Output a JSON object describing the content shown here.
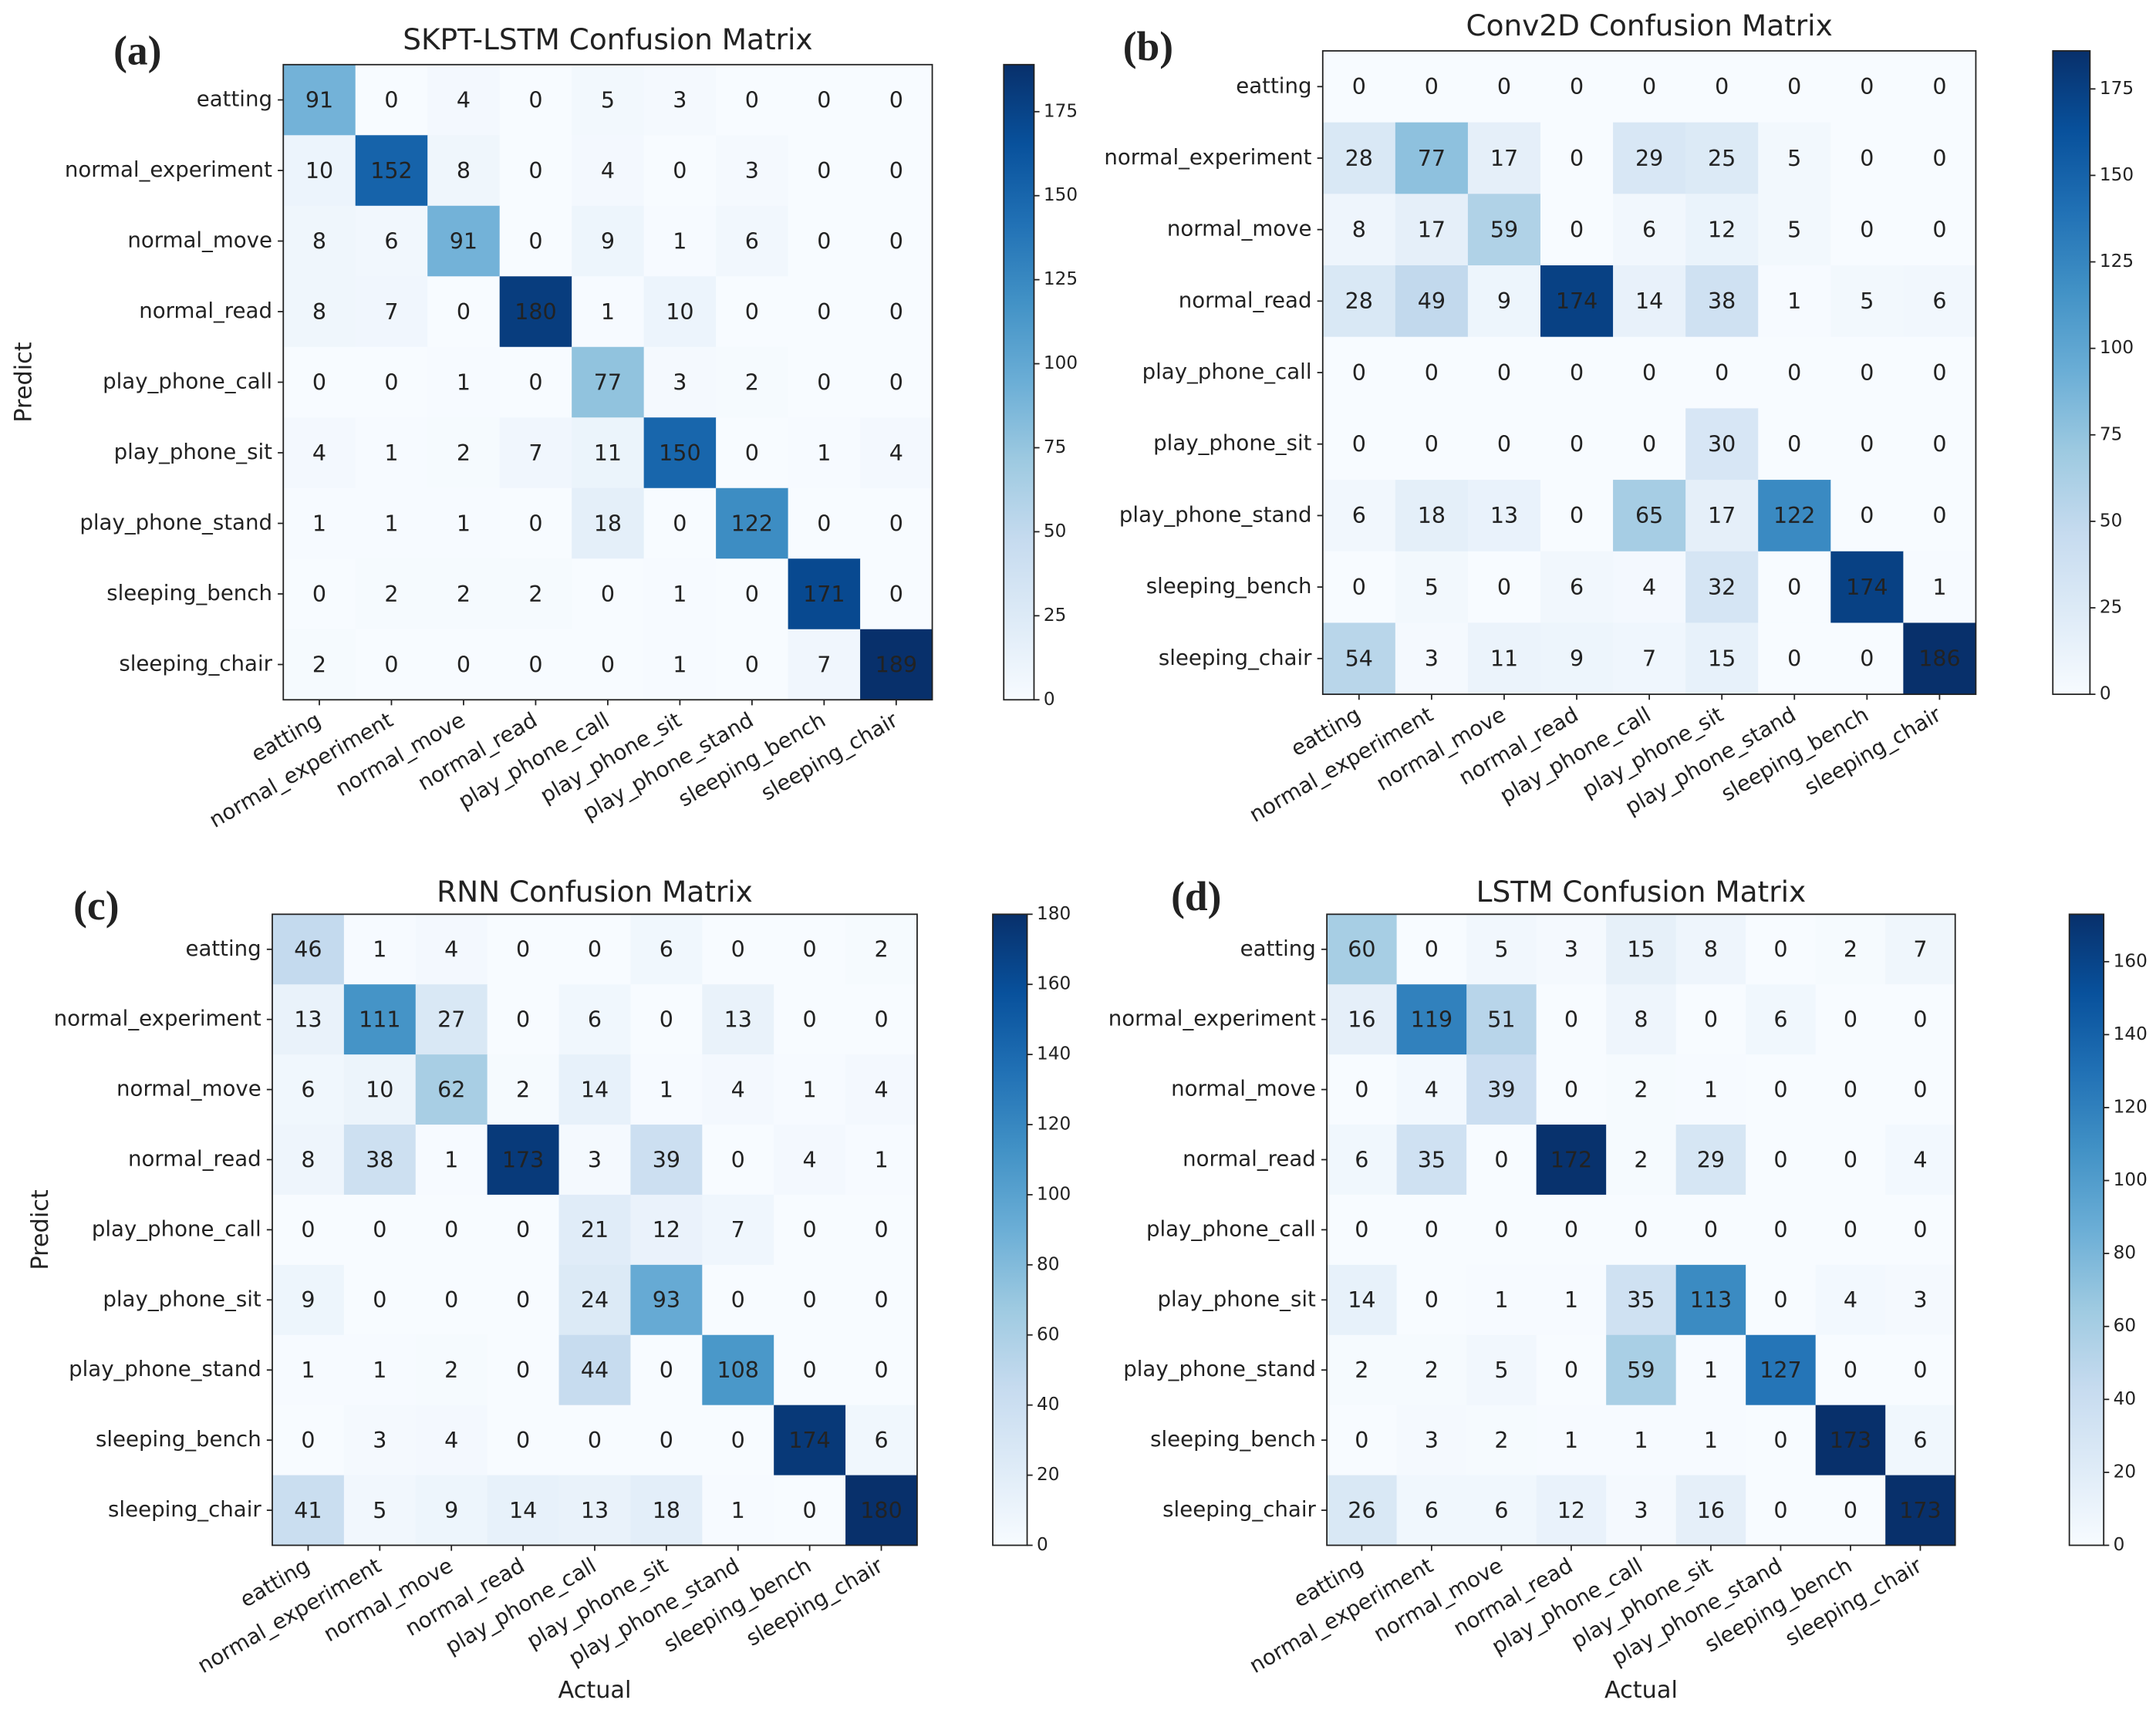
{
  "chart_data": [
    {
      "type": "heatmap",
      "panel_label": "(a)",
      "title": "SKPT-LSTM Confusion Matrix",
      "y_label": "Predict",
      "categories": [
        "eatting",
        "normal_experiment",
        "normal_move",
        "normal_read",
        "play_phone_call",
        "play_phone_sit",
        "play_phone_stand",
        "sleeping_bench",
        "sleeping_chair"
      ],
      "values": [
        [
          91,
          0,
          4,
          0,
          5,
          3,
          0,
          0,
          0
        ],
        [
          10,
          152,
          8,
          0,
          4,
          0,
          3,
          0,
          0
        ],
        [
          8,
          6,
          91,
          0,
          9,
          1,
          6,
          0,
          0
        ],
        [
          8,
          7,
          0,
          180,
          1,
          10,
          0,
          0,
          0
        ],
        [
          0,
          0,
          1,
          0,
          77,
          3,
          2,
          0,
          0
        ],
        [
          4,
          1,
          2,
          7,
          11,
          150,
          0,
          1,
          4
        ],
        [
          1,
          1,
          1,
          0,
          18,
          0,
          122,
          0,
          0
        ],
        [
          0,
          2,
          2,
          2,
          0,
          1,
          0,
          171,
          0
        ],
        [
          2,
          0,
          0,
          0,
          0,
          1,
          0,
          7,
          189
        ]
      ],
      "clim": [
        0,
        189
      ],
      "cticks": [
        0,
        25,
        50,
        75,
        100,
        125,
        150,
        175
      ],
      "colormap": "Blues"
    },
    {
      "type": "heatmap",
      "panel_label": "(b)",
      "title": "Conv2D Confusion Matrix",
      "categories": [
        "eatting",
        "normal_experiment",
        "normal_move",
        "normal_read",
        "play_phone_call",
        "play_phone_sit",
        "play_phone_stand",
        "sleeping_bench",
        "sleeping_chair"
      ],
      "values": [
        [
          0,
          0,
          0,
          0,
          0,
          0,
          0,
          0,
          0
        ],
        [
          28,
          77,
          17,
          0,
          29,
          25,
          5,
          0,
          0
        ],
        [
          8,
          17,
          59,
          0,
          6,
          12,
          5,
          0,
          0
        ],
        [
          28,
          49,
          9,
          174,
          14,
          38,
          1,
          5,
          6
        ],
        [
          0,
          0,
          0,
          0,
          0,
          0,
          0,
          0,
          0
        ],
        [
          0,
          0,
          0,
          0,
          0,
          30,
          0,
          0,
          0
        ],
        [
          6,
          18,
          13,
          0,
          65,
          17,
          122,
          0,
          0
        ],
        [
          0,
          5,
          0,
          6,
          4,
          32,
          0,
          174,
          1
        ],
        [
          54,
          3,
          11,
          9,
          7,
          15,
          0,
          0,
          186
        ]
      ],
      "clim": [
        0,
        186
      ],
      "cticks": [
        0,
        25,
        50,
        75,
        100,
        125,
        150,
        175
      ],
      "colormap": "Blues"
    },
    {
      "type": "heatmap",
      "panel_label": "(c)",
      "title": "RNN Confusion Matrix",
      "y_label": "Predict",
      "x_label": "Actual",
      "categories": [
        "eatting",
        "normal_experiment",
        "normal_move",
        "normal_read",
        "play_phone_call",
        "play_phone_sit",
        "play_phone_stand",
        "sleeping_bench",
        "sleeping_chair"
      ],
      "values": [
        [
          46,
          1,
          4,
          0,
          0,
          6,
          0,
          0,
          2
        ],
        [
          13,
          111,
          27,
          0,
          6,
          0,
          13,
          0,
          0
        ],
        [
          6,
          10,
          62,
          2,
          14,
          1,
          4,
          1,
          4
        ],
        [
          8,
          38,
          1,
          173,
          3,
          39,
          0,
          4,
          1
        ],
        [
          0,
          0,
          0,
          0,
          21,
          12,
          7,
          0,
          0
        ],
        [
          9,
          0,
          0,
          0,
          24,
          93,
          0,
          0,
          0
        ],
        [
          1,
          1,
          2,
          0,
          44,
          0,
          108,
          0,
          0
        ],
        [
          0,
          3,
          4,
          0,
          0,
          0,
          0,
          174,
          6
        ],
        [
          41,
          5,
          9,
          14,
          13,
          18,
          1,
          0,
          180
        ]
      ],
      "clim": [
        0,
        180
      ],
      "cticks": [
        0,
        20,
        40,
        60,
        80,
        100,
        120,
        140,
        160,
        180
      ],
      "colormap": "Blues"
    },
    {
      "type": "heatmap",
      "panel_label": "(d)",
      "title": "LSTM Confusion Matrix",
      "x_label": "Actual",
      "categories": [
        "eatting",
        "normal_experiment",
        "normal_move",
        "normal_read",
        "play_phone_call",
        "play_phone_sit",
        "play_phone_stand",
        "sleeping_bench",
        "sleeping_chair"
      ],
      "values": [
        [
          60,
          0,
          5,
          3,
          15,
          8,
          0,
          2,
          7
        ],
        [
          16,
          119,
          51,
          0,
          8,
          0,
          6,
          0,
          0
        ],
        [
          0,
          4,
          39,
          0,
          2,
          1,
          0,
          0,
          0
        ],
        [
          6,
          35,
          0,
          172,
          2,
          29,
          0,
          0,
          4
        ],
        [
          0,
          0,
          0,
          0,
          0,
          0,
          0,
          0,
          0
        ],
        [
          14,
          0,
          1,
          1,
          35,
          113,
          0,
          4,
          3
        ],
        [
          2,
          2,
          5,
          0,
          59,
          1,
          127,
          0,
          0
        ],
        [
          0,
          3,
          2,
          1,
          1,
          1,
          0,
          173,
          6
        ],
        [
          26,
          6,
          6,
          12,
          3,
          16,
          0,
          0,
          173
        ]
      ],
      "clim": [
        0,
        173
      ],
      "cticks": [
        0,
        20,
        40,
        60,
        80,
        100,
        120,
        140,
        160
      ],
      "colormap": "Blues"
    }
  ]
}
